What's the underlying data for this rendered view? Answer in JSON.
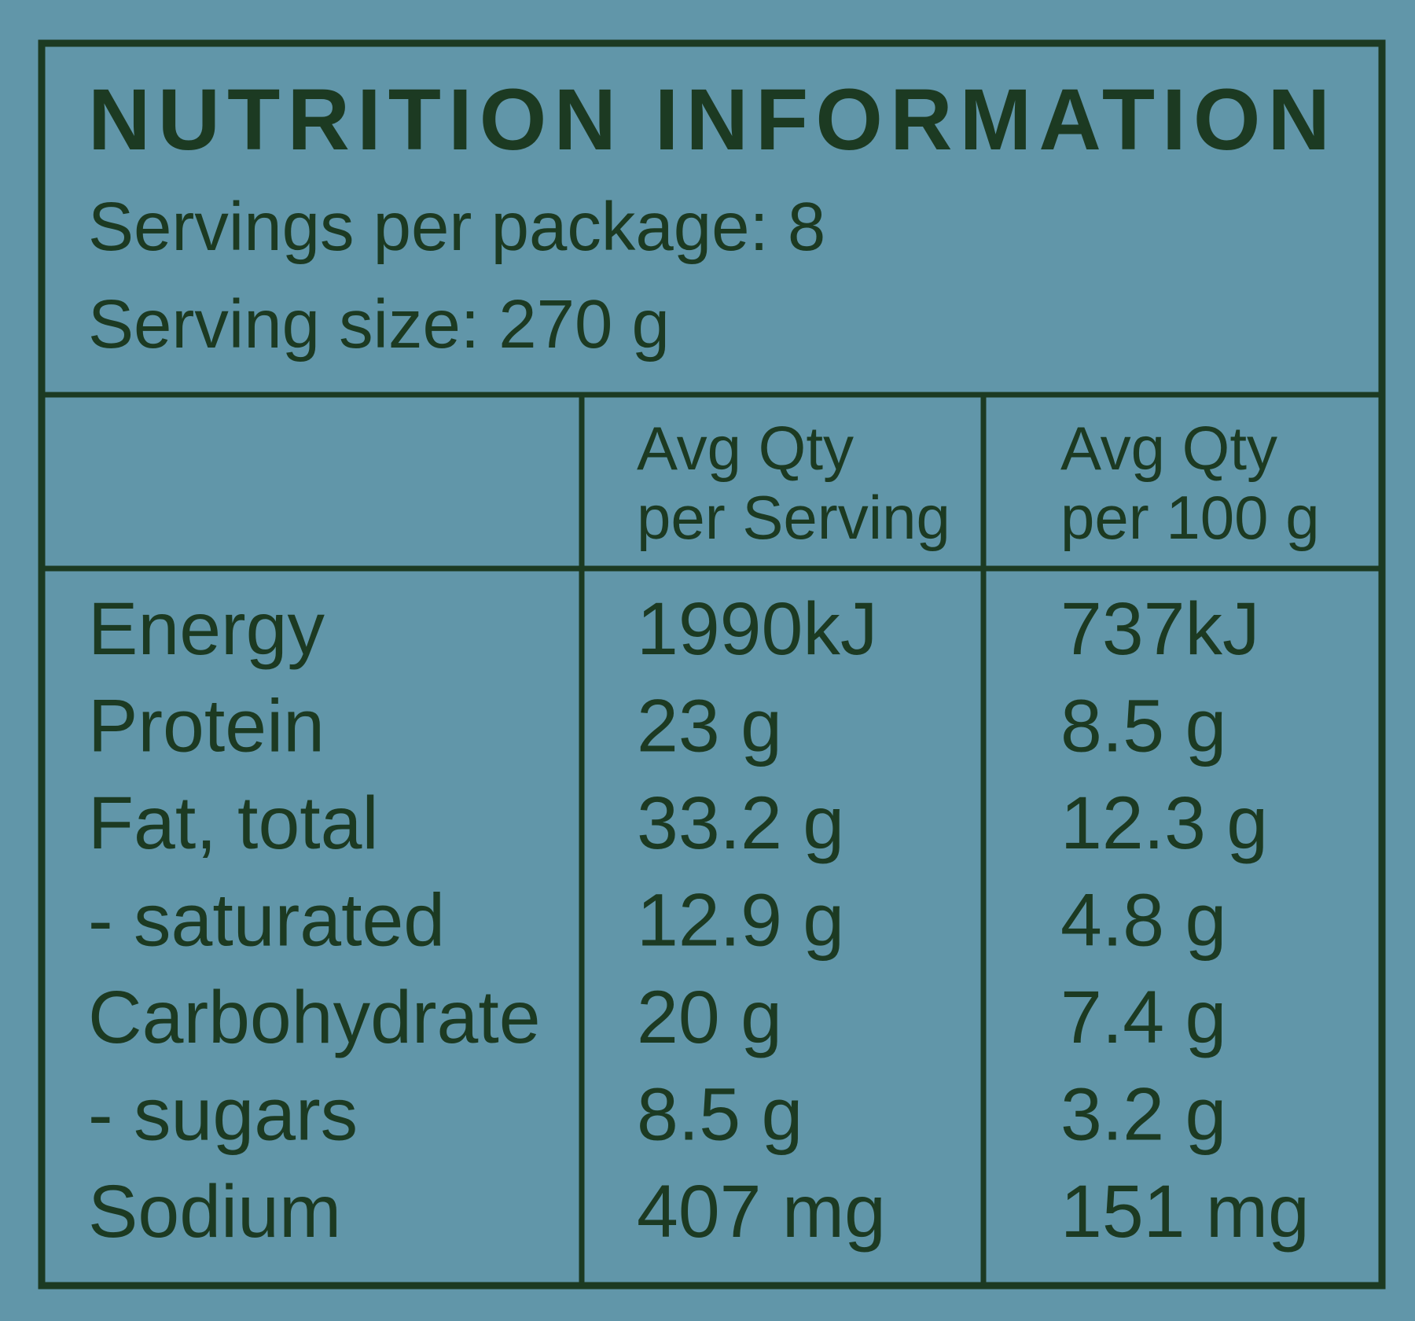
{
  "header": {
    "title": "NUTRITION INFORMATION",
    "servings": "Servings per package: 8",
    "serving_size": "Serving size: 270 g"
  },
  "table": {
    "columns": [
      [
        "Avg Qty",
        "per Serving"
      ],
      [
        "Avg Qty",
        "per 100 g"
      ]
    ],
    "rows": [
      [
        "Energy",
        "1990kJ",
        "737kJ"
      ],
      [
        "Protein",
        "23 g",
        "8.5 g"
      ],
      [
        "Fat, total",
        "33.2 g",
        "12.3 g"
      ],
      [
        "- saturated",
        "12.9 g",
        "4.8 g"
      ],
      [
        "Carbohydrate",
        "20 g",
        "7.4 g"
      ],
      [
        "- sugars",
        "8.5 g",
        "3.2 g"
      ],
      [
        "Sodium",
        "407 mg",
        "151 mg"
      ]
    ]
  }
}
